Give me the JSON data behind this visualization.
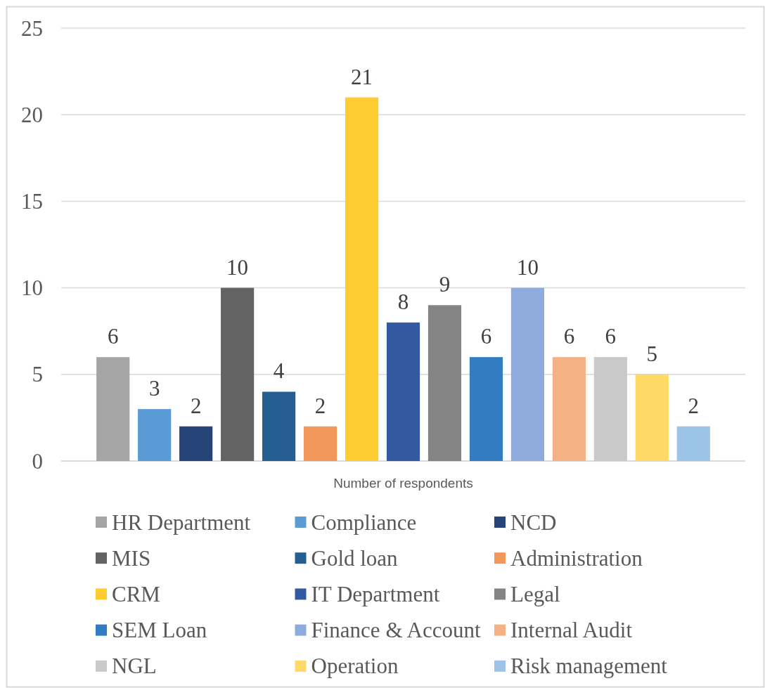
{
  "chart_data": {
    "type": "bar",
    "categories": [
      "Number of respondents"
    ],
    "series": [
      {
        "name": "HR Department",
        "color": "#a5a5a5",
        "values": [
          6
        ]
      },
      {
        "name": "Compliance",
        "color": "#5b9bd5",
        "values": [
          3
        ]
      },
      {
        "name": "NCD",
        "color": "#264478",
        "values": [
          2
        ]
      },
      {
        "name": "MIS",
        "color": "#636363",
        "values": [
          10
        ]
      },
      {
        "name": "Gold loan",
        "color": "#255e91",
        "values": [
          4
        ]
      },
      {
        "name": "Administration",
        "color": "#f1975a",
        "values": [
          2
        ]
      },
      {
        "name": "CRM",
        "color": "#fecb30",
        "values": [
          21
        ]
      },
      {
        "name": "IT Department",
        "color": "#335aa1",
        "values": [
          8
        ]
      },
      {
        "name": "Legal",
        "color": "#848484",
        "values": [
          9
        ]
      },
      {
        "name": "SEM Loan",
        "color": "#327dc2",
        "values": [
          6
        ]
      },
      {
        "name": "Finance & Account",
        "color": "#8faadc",
        "values": [
          10
        ]
      },
      {
        "name": "Internal Audit",
        "color": "#f4b183",
        "values": [
          6
        ]
      },
      {
        "name": "NGL",
        "color": "#c9c9c9",
        "values": [
          6
        ]
      },
      {
        "name": "Operation",
        "color": "#ffd966",
        "values": [
          5
        ]
      },
      {
        "name": "Risk management",
        "color": "#9dc3e6",
        "values": [
          2
        ]
      }
    ],
    "ylim": [
      0,
      25
    ],
    "yticks": [
      0,
      5,
      10,
      15,
      20,
      25
    ],
    "grid": "y",
    "legend": "bottom",
    "data_labels": true
  }
}
